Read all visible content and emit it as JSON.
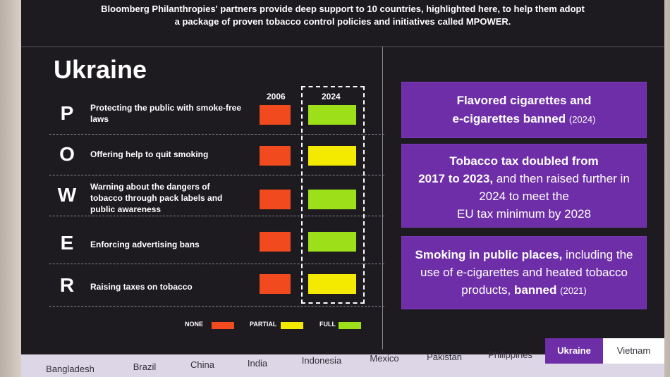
{
  "header": {
    "line1": "Bloomberg Philanthropies' partners provide deep support to 10 countries, highlighted here, to help them adopt",
    "line2": "a package of proven tobacco control policies and initiatives called MPOWER."
  },
  "country": "Ukraine",
  "years": [
    "2006",
    "2024"
  ],
  "colors": {
    "none": "#f04a1e",
    "partial": "#f4ea00",
    "full": "#9de01a",
    "accent": "#6e2ea8"
  },
  "rows": [
    {
      "letter": "P",
      "desc": "Protecting the public with smoke-free laws",
      "status_2006": "none",
      "status_2024": "full"
    },
    {
      "letter": "O",
      "desc": "Offering help to quit smoking",
      "status_2006": "none",
      "status_2024": "partial"
    },
    {
      "letter": "W",
      "desc": "Warning about the dangers of tobacco through pack labels and public awareness",
      "status_2006": "none",
      "status_2024": "full"
    },
    {
      "letter": "E",
      "desc": "Enforcing advertising bans",
      "status_2006": "none",
      "status_2024": "full"
    },
    {
      "letter": "R",
      "desc": "Raising taxes on tobacco",
      "status_2006": "none",
      "status_2024": "partial"
    }
  ],
  "legend": {
    "none": "NONE",
    "partial": "PARTIAL",
    "full": "FULL"
  },
  "panels": {
    "p1_line1": "Flavored cigarettes and",
    "p1_line2": "e-cigarettes banned",
    "p1_year": "(2024)",
    "p2_bold": "Tobacco tax doubled from",
    "p2_bold2": "2017 to 2023,",
    "p2_rest": "and then raised further in",
    "p2_line3": "2024 to meet the",
    "p2_line4": "EU tax minimum by 2028",
    "p3_bold": "Smoking in public places,",
    "p3_rest": "including the",
    "p3_line2": "use of e-cigarettes and heated tobacco",
    "p3_line3": "products,",
    "p3_banned": "banned",
    "p3_year": "(2021)"
  },
  "tabs": [
    "Bangladesh",
    "Brazil",
    "China",
    "India",
    "Indonesia",
    "Mexico",
    "Pakistan",
    "Philippines",
    "Ukraine",
    "Vietnam"
  ]
}
